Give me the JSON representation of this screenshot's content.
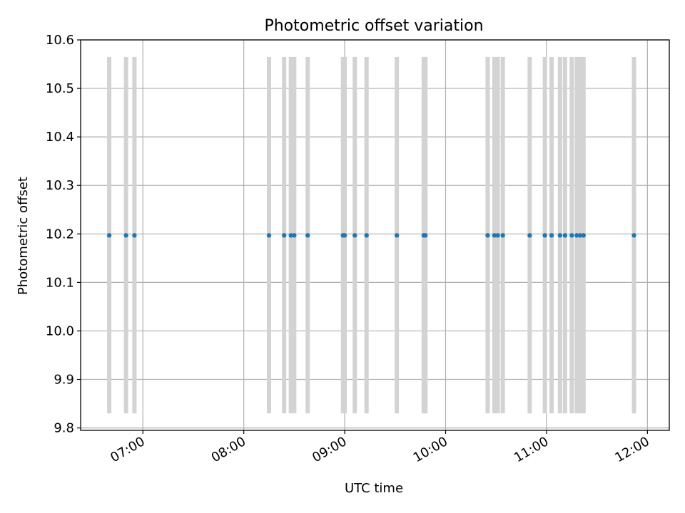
{
  "chart_data": {
    "type": "scatter",
    "title": "Photometric offset variation",
    "xlabel": "UTC time",
    "ylabel": "Photometric offset",
    "xlim": [
      "06:23",
      "12:13"
    ],
    "ylim": [
      9.795,
      10.6
    ],
    "xticks": [
      "07:00",
      "08:00",
      "09:00",
      "10:00",
      "11:00",
      "12:00"
    ],
    "yticks": [
      9.8,
      9.9,
      10.0,
      10.1,
      10.2,
      10.3,
      10.4,
      10.5,
      10.6
    ],
    "grid": true,
    "band_ylim": [
      9.83,
      10.565
    ],
    "band_color": "#d3d3d3",
    "point_color": "#1f77b4",
    "points": [
      {
        "x": "06:40",
        "y": 10.197
      },
      {
        "x": "06:50",
        "y": 10.197
      },
      {
        "x": "06:55",
        "y": 10.197
      },
      {
        "x": "08:15",
        "y": 10.197
      },
      {
        "x": "08:24",
        "y": 10.197
      },
      {
        "x": "08:28",
        "y": 10.197
      },
      {
        "x": "08:30",
        "y": 10.197
      },
      {
        "x": "08:38",
        "y": 10.197
      },
      {
        "x": "08:59",
        "y": 10.197
      },
      {
        "x": "09:00",
        "y": 10.197
      },
      {
        "x": "09:06",
        "y": 10.197
      },
      {
        "x": "09:13",
        "y": 10.197
      },
      {
        "x": "09:31",
        "y": 10.197
      },
      {
        "x": "09:47",
        "y": 10.197
      },
      {
        "x": "09:48",
        "y": 10.197
      },
      {
        "x": "10:25",
        "y": 10.197
      },
      {
        "x": "10:29",
        "y": 10.197
      },
      {
        "x": "10:31",
        "y": 10.197
      },
      {
        "x": "10:34",
        "y": 10.197
      },
      {
        "x": "10:50",
        "y": 10.197
      },
      {
        "x": "10:59",
        "y": 10.197
      },
      {
        "x": "11:03",
        "y": 10.197
      },
      {
        "x": "11:08",
        "y": 10.197
      },
      {
        "x": "11:11",
        "y": 10.197
      },
      {
        "x": "11:15",
        "y": 10.197
      },
      {
        "x": "11:18",
        "y": 10.197
      },
      {
        "x": "11:20",
        "y": 10.197
      },
      {
        "x": "11:22",
        "y": 10.197
      },
      {
        "x": "11:52",
        "y": 10.197
      }
    ]
  }
}
